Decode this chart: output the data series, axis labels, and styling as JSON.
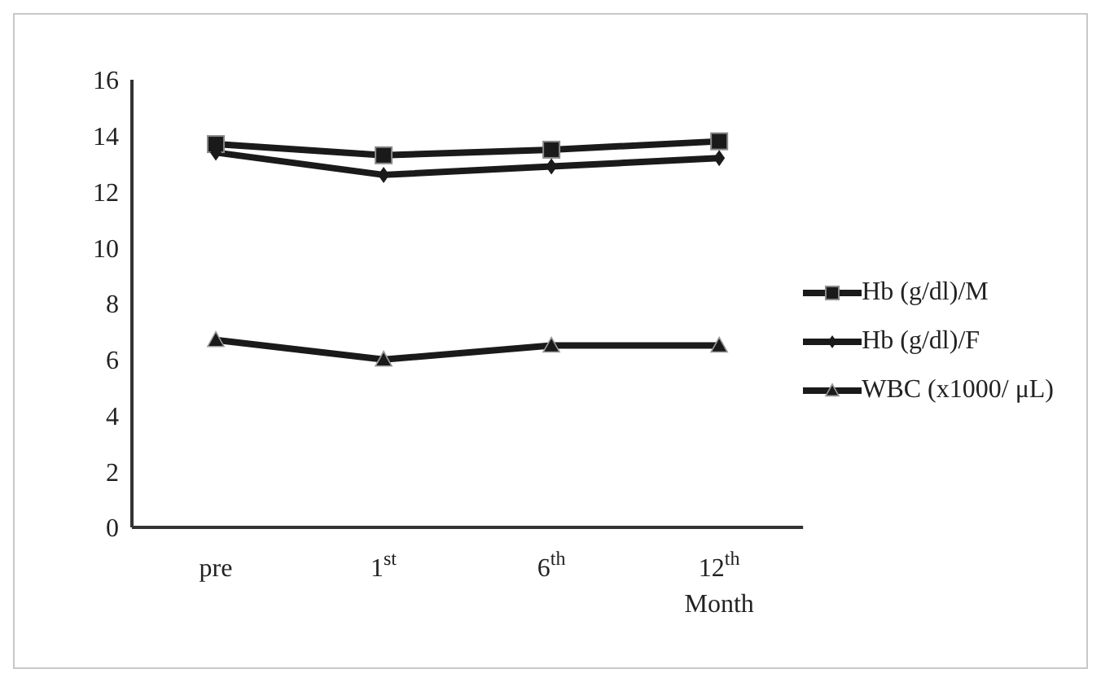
{
  "chart_data": {
    "type": "line",
    "xlabel": "Month",
    "categories": [
      "pre",
      "1$^{st}$",
      "6$^{th}$",
      "12$^{th}$"
    ],
    "series": [
      {
        "name": "Hb (g/dl)/M",
        "color": "#1a1a1a",
        "marker": "square",
        "values": [
          13.7,
          13.3,
          13.5,
          13.8
        ]
      },
      {
        "name": "Hb (g/dl)/F",
        "color": "#1a1a1a",
        "marker": "diamond",
        "values": [
          13.4,
          12.6,
          12.9,
          13.2
        ]
      },
      {
        "name": "WBC (x1000/ μL)",
        "color": "#1a1a1a",
        "marker": "triangle",
        "values": [
          6.7,
          6.0,
          6.5,
          6.5
        ]
      }
    ],
    "ylim": [
      0,
      16
    ],
    "yticks": [
      0,
      2,
      4,
      6,
      8,
      10,
      12,
      14,
      16
    ],
    "grid": false,
    "legend": "right"
  }
}
